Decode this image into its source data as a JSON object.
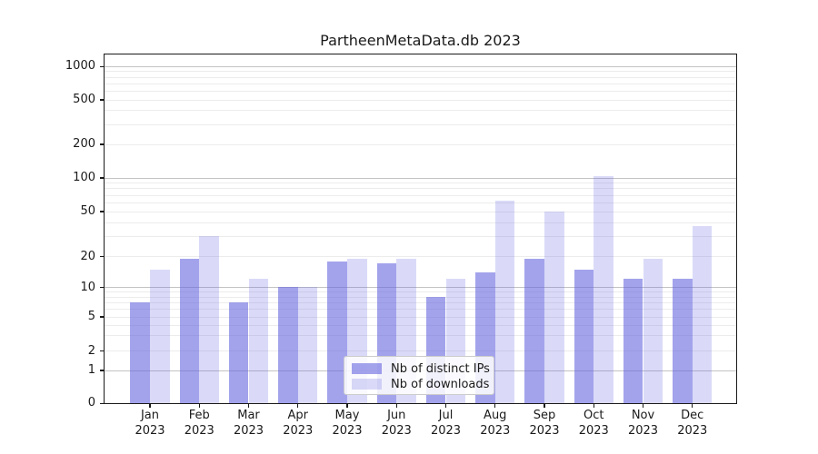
{
  "title": "PartheenMetaData.db 2023",
  "chart_data": {
    "type": "bar",
    "title": "PartheenMetaData.db 2023",
    "categories": [
      "Jan 2023",
      "Feb 2023",
      "Mar 2023",
      "Apr 2023",
      "May 2023",
      "Jun 2023",
      "Jul 2023",
      "Aug 2023",
      "Sep 2023",
      "Oct 2023",
      "Nov 2023",
      "Dec 2023"
    ],
    "series": [
      {
        "name": "Nb of distinct IPs",
        "color": "rgba(102,102,224,0.60)",
        "values": [
          7,
          19,
          7,
          10,
          18,
          17,
          8,
          14,
          19,
          15,
          12,
          12
        ]
      },
      {
        "name": "Nb of downloads",
        "color": "rgba(102,102,224,0.24)",
        "values": [
          15,
          30,
          12,
          10,
          19,
          19,
          12,
          62,
          50,
          103,
          19,
          37
        ]
      }
    ],
    "yscale": "symlog",
    "yticks": [
      0,
      1,
      2,
      5,
      10,
      20,
      50,
      100,
      200,
      500,
      1000
    ],
    "ylim": [
      0,
      1280
    ],
    "grid": true,
    "legend_position": "lower center"
  },
  "y_axis": {
    "ticks": [
      {
        "label": "1000",
        "value": 1000
      },
      {
        "label": "500",
        "value": 500
      },
      {
        "label": "200",
        "value": 200
      },
      {
        "label": "100",
        "value": 100
      },
      {
        "label": "50",
        "value": 50
      },
      {
        "label": "20",
        "value": 20
      },
      {
        "label": "10",
        "value": 10
      },
      {
        "label": "5",
        "value": 5
      },
      {
        "label": "2",
        "value": 2
      },
      {
        "label": "1",
        "value": 1
      },
      {
        "label": "0",
        "value": 0
      }
    ]
  },
  "x_axis": {
    "months": [
      "Jan",
      "Feb",
      "Mar",
      "Apr",
      "May",
      "Jun",
      "Jul",
      "Aug",
      "Sep",
      "Oct",
      "Nov",
      "Dec"
    ],
    "year": "2023"
  },
  "legend": {
    "items": [
      {
        "label": "Nb of distinct IPs",
        "color": "rgba(102,102,224,0.60)"
      },
      {
        "label": "Nb of downloads",
        "color": "rgba(102,102,224,0.24)"
      }
    ]
  },
  "colors": {
    "bar_base": "#6666e0",
    "grid_major": "#c3c3c3",
    "grid_minor": "#ececec",
    "spine": "#1a1a1a",
    "background": "#ffffff"
  }
}
